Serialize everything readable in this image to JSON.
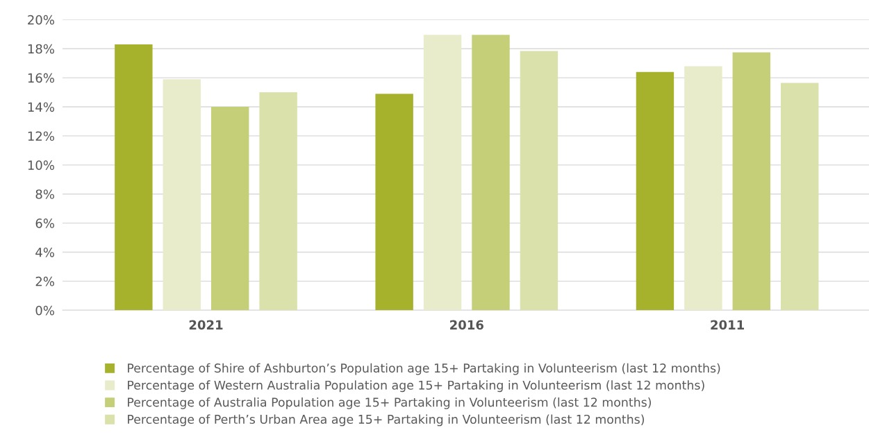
{
  "chart_data": {
    "type": "bar",
    "categories": [
      "2021",
      "2016",
      "2011"
    ],
    "series": [
      {
        "name": "Percentage of Shire of Ashburton’s Population age 15+ Partaking in Volunteerism (last 12 months)",
        "color": "#a6b22c",
        "values": [
          18.3,
          14.9,
          16.4
        ]
      },
      {
        "name": "Percentage of Western Australia Population age 15+ Partaking in Volunteerism (last 12 months)",
        "color": "#e8ecca",
        "values": [
          15.9,
          18.95,
          16.8
        ]
      },
      {
        "name": "Percentage of Australia Population age 15+ Partaking in Volunteerism (last 12 months)",
        "color": "#c5cf78",
        "values": [
          14.0,
          18.95,
          17.75
        ]
      },
      {
        "name": "Percentage of Perth’s Urban Area age 15+ Partaking in Volunteerism (last 12 months)",
        "color": "#dbe1aa",
        "values": [
          15.0,
          17.85,
          15.65
        ]
      }
    ],
    "ylim": [
      0,
      20
    ],
    "yticks": [
      {
        "value": 0,
        "label": "0%"
      },
      {
        "value": 2,
        "label": "2%"
      },
      {
        "value": 4,
        "label": "4%"
      },
      {
        "value": 6,
        "label": "6%"
      },
      {
        "value": 8,
        "label": "8%"
      },
      {
        "value": 10,
        "label": "10%"
      },
      {
        "value": 12,
        "label": "12%"
      },
      {
        "value": 14,
        "label": "14%"
      },
      {
        "value": 16,
        "label": "16%"
      },
      {
        "value": 18,
        "label": "18%"
      },
      {
        "value": 20,
        "label": "20%"
      }
    ],
    "grid": "y",
    "legend": "bottom",
    "marker": "square"
  }
}
